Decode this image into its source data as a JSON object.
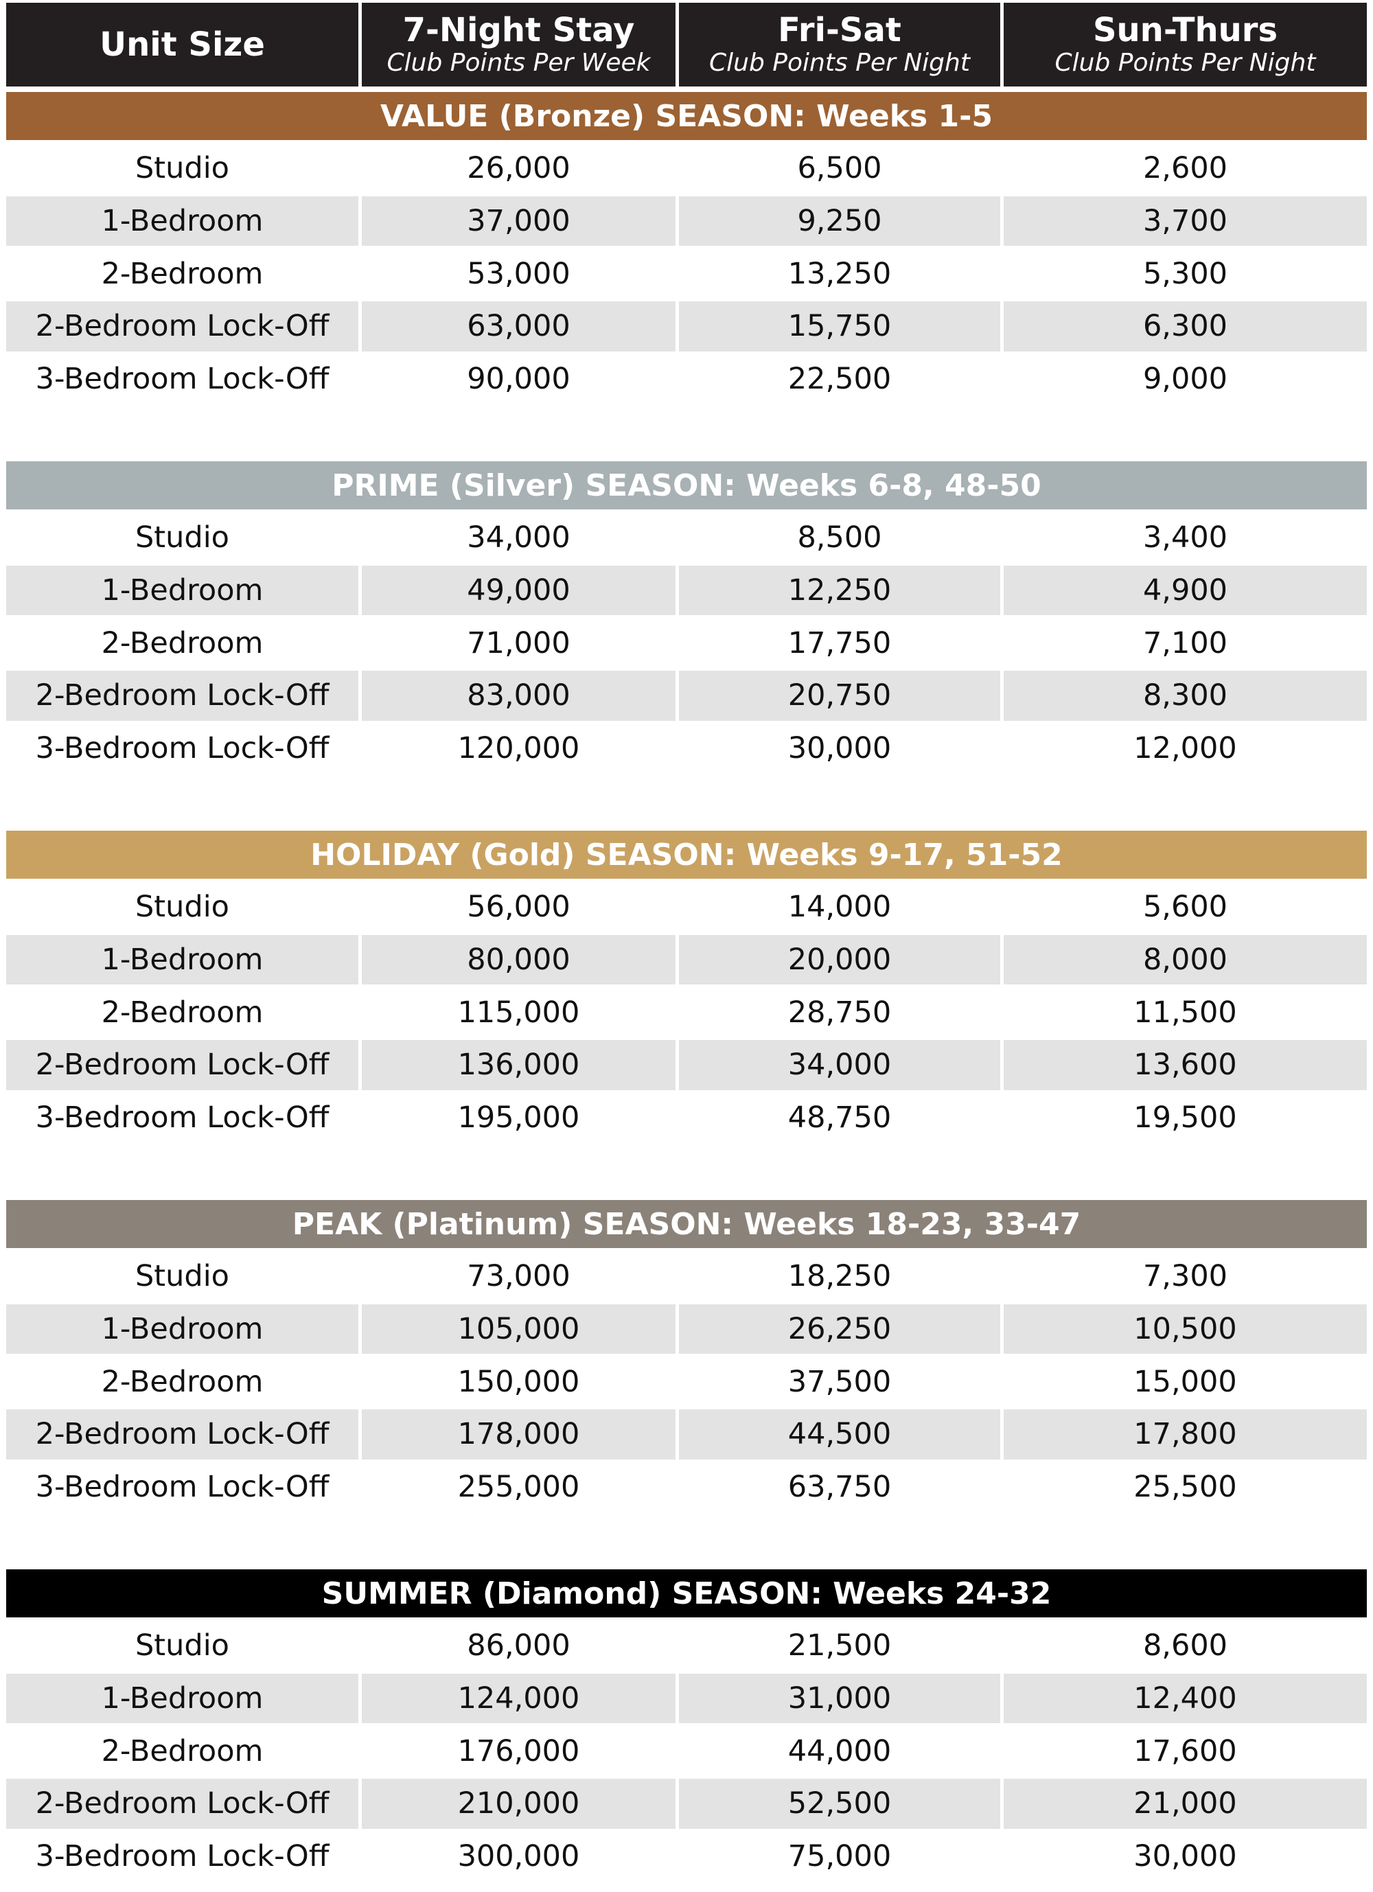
{
  "header": {
    "columns": [
      {
        "title": "Unit Size"
      },
      {
        "title": "7-Night Stay",
        "subtitle": "Club Points Per Week"
      },
      {
        "title": "Fri-Sat",
        "subtitle": "Club Points Per Night"
      },
      {
        "title": "Sun-Thurs",
        "subtitle": "Club Points Per Night"
      }
    ]
  },
  "sections": [
    {
      "title": "VALUE (Bronze) SEASON: Weeks 1-5",
      "color": "#9c6233",
      "rows": [
        [
          "Studio",
          "26,000",
          "6,500",
          "2,600"
        ],
        [
          "1-Bedroom",
          "37,000",
          "9,250",
          "3,700"
        ],
        [
          "2-Bedroom",
          "53,000",
          "13,250",
          "5,300"
        ],
        [
          "2-Bedroom Lock-Off",
          "63,000",
          "15,750",
          "6,300"
        ],
        [
          "3-Bedroom Lock-Off",
          "90,000",
          "22,500",
          "9,000"
        ]
      ]
    },
    {
      "title": "PRIME (Silver) SEASON: Weeks 6-8, 48-50",
      "color": "#a8b1b3",
      "rows": [
        [
          "Studio",
          "34,000",
          "8,500",
          "3,400"
        ],
        [
          "1-Bedroom",
          "49,000",
          "12,250",
          "4,900"
        ],
        [
          "2-Bedroom",
          "71,000",
          "17,750",
          "7,100"
        ],
        [
          "2-Bedroom Lock-Off",
          "83,000",
          "20,750",
          "8,300"
        ],
        [
          "3-Bedroom Lock-Off",
          "120,000",
          "30,000",
          "12,000"
        ]
      ]
    },
    {
      "title": "HOLIDAY (Gold) SEASON: Weeks 9-17, 51-52",
      "color": "#c9a262",
      "rows": [
        [
          "Studio",
          "56,000",
          "14,000",
          "5,600"
        ],
        [
          "1-Bedroom",
          "80,000",
          "20,000",
          "8,000"
        ],
        [
          "2-Bedroom",
          "115,000",
          "28,750",
          "11,500"
        ],
        [
          "2-Bedroom Lock-Off",
          "136,000",
          "34,000",
          "13,600"
        ],
        [
          "3-Bedroom Lock-Off",
          "195,000",
          "48,750",
          "19,500"
        ]
      ]
    },
    {
      "title": "PEAK (Platinum) SEASON: Weeks 18-23, 33-47",
      "color": "#8b8279",
      "rows": [
        [
          "Studio",
          "73,000",
          "18,250",
          "7,300"
        ],
        [
          "1-Bedroom",
          "105,000",
          "26,250",
          "10,500"
        ],
        [
          "2-Bedroom",
          "150,000",
          "37,500",
          "15,000"
        ],
        [
          "2-Bedroom Lock-Off",
          "178,000",
          "44,500",
          "17,800"
        ],
        [
          "3-Bedroom Lock-Off",
          "255,000",
          "63,750",
          "25,500"
        ]
      ]
    },
    {
      "title": "SUMMER (Diamond) SEASON: Weeks 24-32",
      "color": "#000000",
      "rows": [
        [
          "Studio",
          "86,000",
          "21,500",
          "8,600"
        ],
        [
          "1-Bedroom",
          "124,000",
          "31,000",
          "12,400"
        ],
        [
          "2-Bedroom",
          "176,000",
          "44,000",
          "17,600"
        ],
        [
          "2-Bedroom Lock-Off",
          "210,000",
          "52,500",
          "21,000"
        ],
        [
          "3-Bedroom Lock-Off",
          "300,000",
          "75,000",
          "30,000"
        ]
      ]
    }
  ]
}
